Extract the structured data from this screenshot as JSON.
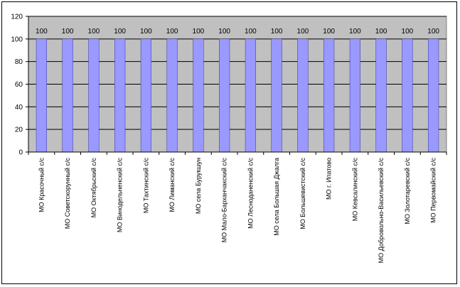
{
  "chart_data": {
    "type": "bar",
    "title": "",
    "xlabel": "",
    "ylabel": "",
    "ylim": [
      0,
      120
    ],
    "yticks": [
      0,
      20,
      40,
      60,
      80,
      100,
      120
    ],
    "grid": true,
    "legend": "none",
    "colors": {
      "bar": "#9999ff",
      "bar_edge": "#333399",
      "plot_bg": "#c0c0c0",
      "grid": "#000000"
    },
    "categories": [
      "МО Красочный с/с",
      "МО Советскорунный с/с",
      "МО Октябрьский с/с",
      "МО Винодельненский с/с",
      "МО Тахтинский с/с",
      "МО Лиманский с/с",
      "МО села Бурукшун",
      "МО Мало-Барханчакский с/с",
      "МО Лесноданенский с/с",
      "МО села Большая Джалга",
      "МО Большевистский с/с",
      "МО г. Ипатово",
      "МО Кевсалинский с/с",
      "МО Добровольно-Васильевский с/с",
      "МО Золотаревский с/с",
      "МО Первомайский с/с"
    ],
    "values": [
      100,
      100,
      100,
      100,
      100,
      100,
      100,
      100,
      100,
      100,
      100,
      100,
      100,
      100,
      100,
      100
    ],
    "data_labels": [
      "100",
      "100",
      "100",
      "100",
      "100",
      "100",
      "100",
      "100",
      "100",
      "100",
      "100",
      "100",
      "100",
      "100",
      "100",
      "100"
    ]
  }
}
